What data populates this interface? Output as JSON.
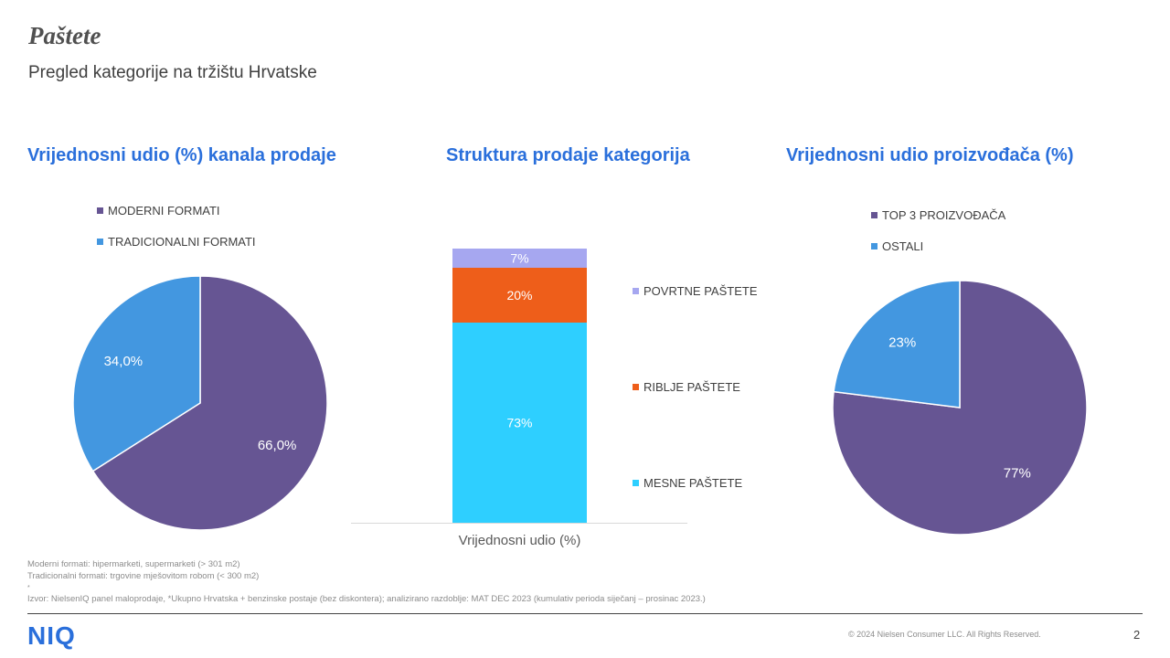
{
  "header": {
    "title": "Paštete",
    "subtitle": "Pregled kategorije na tržištu Hrvatske"
  },
  "sections": {
    "left_title": "Vrijednosni  udio (%) kanala prodaje",
    "middle_title": "Struktura prodaje kategorija",
    "right_title": "Vrijednosni  udio proizvođača (%)"
  },
  "chart_data": [
    {
      "type": "pie",
      "categories": [
        "MODERNI FORMATI",
        "TRADICIONALNI FORMATI"
      ],
      "values": [
        66.0,
        34.0
      ],
      "labels": [
        "66,0%",
        "34,0%"
      ],
      "colors": [
        "#665593",
        "#4397E0"
      ],
      "legend": "top"
    },
    {
      "type": "bar",
      "stacked": true,
      "categories": [
        "Vrijednosni udio (%)"
      ],
      "series": [
        {
          "name": "MESNE PAŠTETE",
          "values": [
            73
          ],
          "label": "73%",
          "color": "#2ECFFF"
        },
        {
          "name": "RIBLJE PAŠTETE",
          "values": [
            20
          ],
          "label": "20%",
          "color": "#EE5E1A"
        },
        {
          "name": "POVRTNE PAŠTETE",
          "values": [
            7
          ],
          "label": "7%",
          "color": "#A6A7F0"
        }
      ],
      "ylim": [
        0,
        100
      ],
      "legend": "right"
    },
    {
      "type": "pie",
      "categories": [
        "TOP 3 PROIZVOĐAČA",
        "OSTALI"
      ],
      "values": [
        77,
        23
      ],
      "labels": [
        "77%",
        "23%"
      ],
      "colors": [
        "#665593",
        "#4397E0"
      ],
      "legend": "top"
    }
  ],
  "notes": {
    "line1": "Moderni  formati: hipermarketi,  supermarketi  (> 301 m2)",
    "line2": "Tradicionalni  formati: trgovine mješovitom robom  (< 300 m2)",
    "bullet": "*",
    "source": "Izvor: NielsenIQ  panel maloprodaje,  *Ukupno  Hrvatska + benzinske postaje  (bez diskontera); analizirano razdoblje: MAT DEC  2023  (kumulativ  perioda siječanj – prosinac 2023.)"
  },
  "footer": {
    "logo": "NIQ",
    "copyright": "© 2024  Nielsen Consumer LLC. All Rights Reserved.",
    "page": "2"
  }
}
